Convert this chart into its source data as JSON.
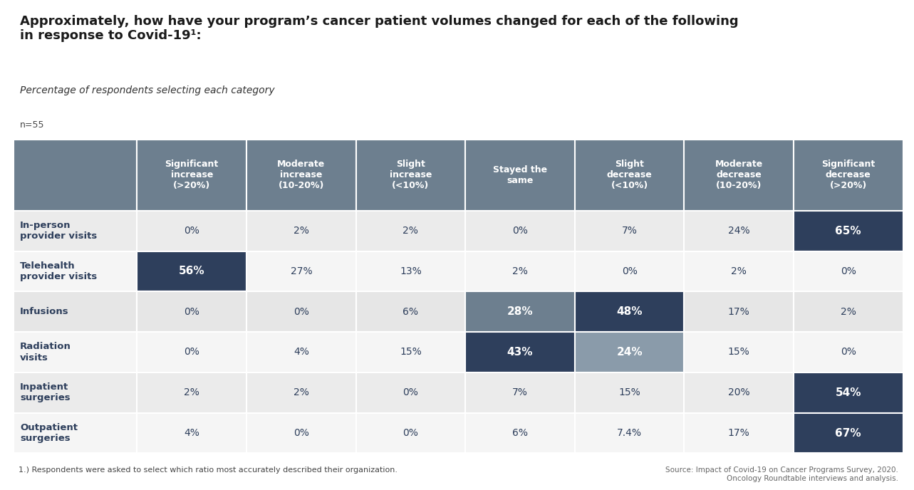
{
  "title_line1": "Approximately, how have your program’s cancer patient volumes changed for each of the following",
  "title_line2": "in response to Covid-19¹:",
  "subtitle": "Percentage of respondents selecting each category",
  "n_label": "n=55",
  "footnote": "1.) Respondents were asked to select which ratio most accurately described their organization.",
  "source": "Source: Impact of Covid-19 on Cancer Programs Survey, 2020.\nOncology Roundtable interviews and analysis.",
  "col_headers": [
    "Significant\nincrease\n(>20%)",
    "Moderate\nincrease\n(10-20%)",
    "Slight\nincrease\n(<10%)",
    "Stayed the\nsame",
    "Slight\ndecrease\n(<10%)",
    "Moderate\ndecrease\n(10-20%)",
    "Significant\ndecrease\n(>20%)"
  ],
  "row_labels": [
    "In-person\nprovider visits",
    "Telehealth\nprovider visits",
    "Infusions",
    "Radiation\nvisits",
    "Inpatient\nsurgeries",
    "Outpatient\nsurgeries"
  ],
  "data": [
    [
      "0%",
      "2%",
      "2%",
      "0%",
      "7%",
      "24%",
      "65%"
    ],
    [
      "56%",
      "27%",
      "13%",
      "2%",
      "0%",
      "2%",
      "0%"
    ],
    [
      "0%",
      "0%",
      "6%",
      "28%",
      "48%",
      "17%",
      "2%"
    ],
    [
      "0%",
      "4%",
      "15%",
      "43%",
      "24%",
      "15%",
      "0%"
    ],
    [
      "2%",
      "2%",
      "0%",
      "7%",
      "15%",
      "20%",
      "54%"
    ],
    [
      "4%",
      "0%",
      "0%",
      "6%",
      "7.4%",
      "17%",
      "67%"
    ]
  ],
  "highlight_cells": [
    [
      0,
      6,
      "#2e3f5c",
      "white"
    ],
    [
      1,
      0,
      "#2e3f5c",
      "white"
    ],
    [
      2,
      3,
      "#6d7f8f",
      "white"
    ],
    [
      2,
      4,
      "#2e3f5c",
      "white"
    ],
    [
      3,
      3,
      "#2e3f5c",
      "white"
    ],
    [
      3,
      4,
      "#8a9baa",
      "white"
    ],
    [
      4,
      6,
      "#2e3f5c",
      "white"
    ],
    [
      5,
      6,
      "#2e3f5c",
      "white"
    ]
  ],
  "header_bg": "#6d7f8f",
  "header_text": "#ffffff",
  "row_bgs": [
    "#ebebeb",
    "#f5f5f5",
    "#e6e6e6",
    "#f5f5f5",
    "#ebebeb",
    "#f5f5f5"
  ],
  "default_text_color": "#2e3f5c",
  "background_color": "#ffffff",
  "title_fontsize": 13,
  "subtitle_fontsize": 10,
  "n_fontsize": 9,
  "header_fontsize": 9,
  "cell_fontsize": 10,
  "row_label_fontsize": 9.5,
  "footnote_fontsize": 8,
  "source_fontsize": 7.5
}
